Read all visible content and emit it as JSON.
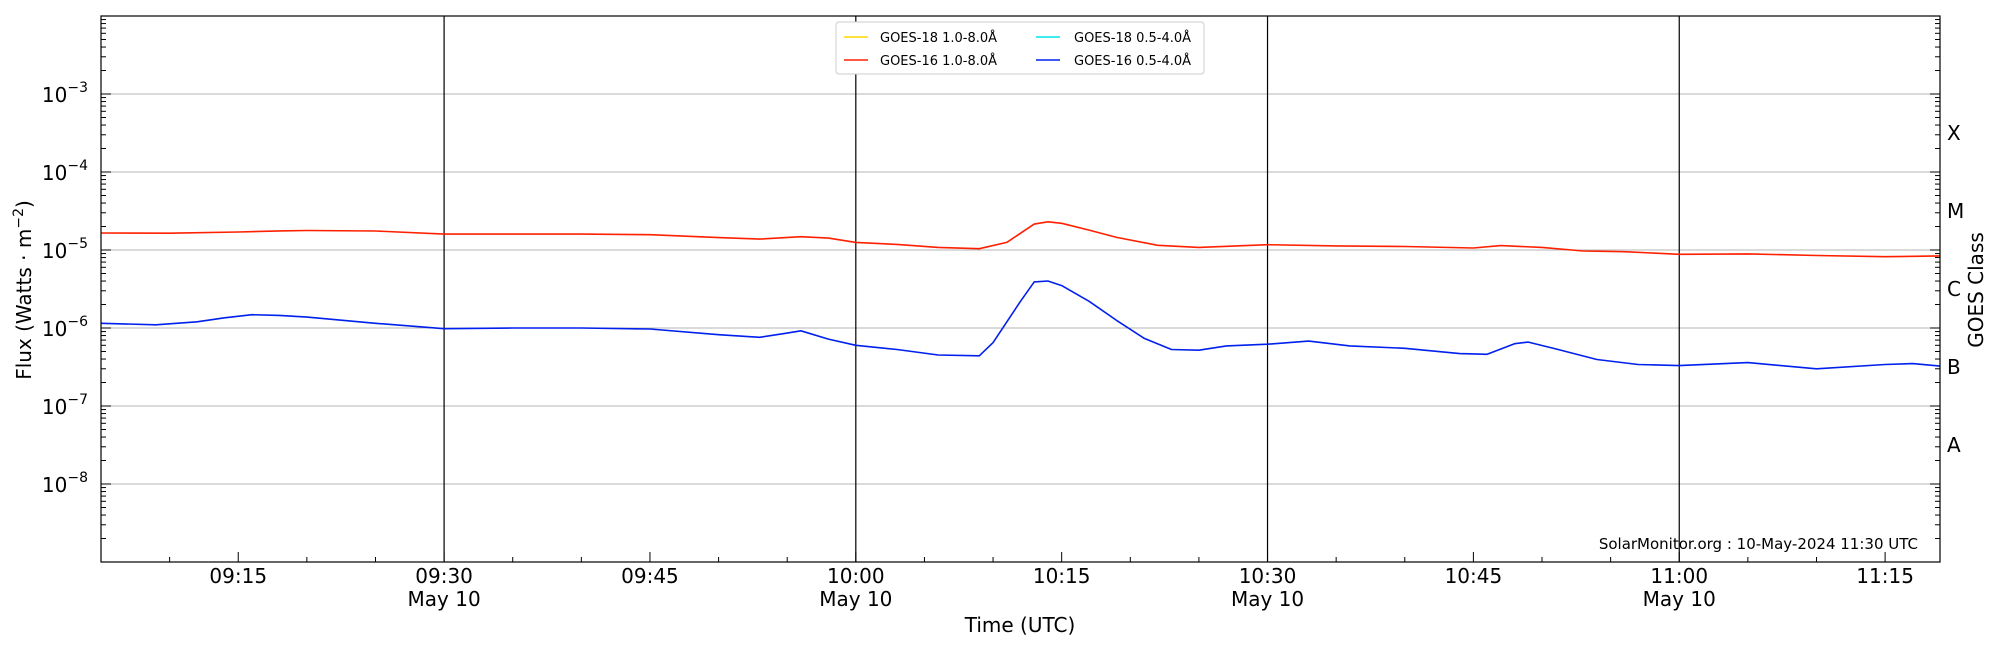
{
  "chart_data": {
    "type": "line",
    "xlabel": "Time (UTC)",
    "ylabel": "Flux (Watts · m",
    "ylabel_sup": "−2",
    "ylabel_close": ")",
    "ylabel_right": "GOES Class",
    "credit": "SolarMonitor.org : 10-May-2024 11:30 UTC",
    "x_range": [
      "09:05",
      "11:19"
    ],
    "y_scale": "log",
    "y_range": [
      1e-09,
      0.01
    ],
    "y_ticks": [
      {
        "value": 0.001,
        "base": "10",
        "exp": "−3"
      },
      {
        "value": 0.0001,
        "base": "10",
        "exp": "−4"
      },
      {
        "value": 1e-05,
        "base": "10",
        "exp": "−5"
      },
      {
        "value": 1e-06,
        "base": "10",
        "exp": "−6"
      },
      {
        "value": 1e-07,
        "base": "10",
        "exp": "−7"
      },
      {
        "value": 1e-08,
        "base": "10",
        "exp": "−8"
      }
    ],
    "x_ticks": [
      {
        "time": "09:15",
        "label": "09:15",
        "date": ""
      },
      {
        "time": "09:30",
        "label": "09:30",
        "date": "May 10"
      },
      {
        "time": "09:45",
        "label": "09:45",
        "date": ""
      },
      {
        "time": "10:00",
        "label": "10:00",
        "date": "May 10"
      },
      {
        "time": "10:15",
        "label": "10:15",
        "date": ""
      },
      {
        "time": "10:30",
        "label": "10:30",
        "date": "May 10"
      },
      {
        "time": "10:45",
        "label": "10:45",
        "date": ""
      },
      {
        "time": "11:00",
        "label": "11:00",
        "date": "May 10"
      },
      {
        "time": "11:15",
        "label": "11:15",
        "date": ""
      }
    ],
    "goes_classes": [
      {
        "label": "X",
        "value": 0.0003162
      },
      {
        "label": "M",
        "value": 3.162e-05
      },
      {
        "label": "C",
        "value": 3.162e-06
      },
      {
        "label": "B",
        "value": 3.162e-07
      },
      {
        "label": "A",
        "value": 3.162e-08
      }
    ],
    "grid": true,
    "legend_position": "top-center",
    "series": [
      {
        "name": "GOES-18 1.0-8.0Å",
        "color": "#ffd700",
        "points": []
      },
      {
        "name": "GOES-18 0.5-4.0Å",
        "color": "#00e5ee",
        "points": []
      },
      {
        "name": "GOES-16 1.0-8.0Å",
        "color": "#ff2000",
        "points": [
          [
            "09:05",
            1.65e-05
          ],
          [
            "09:10",
            1.64e-05
          ],
          [
            "09:15",
            1.7e-05
          ],
          [
            "09:18",
            1.76e-05
          ],
          [
            "09:20",
            1.78e-05
          ],
          [
            "09:25",
            1.75e-05
          ],
          [
            "09:30",
            1.6e-05
          ],
          [
            "09:35",
            1.6e-05
          ],
          [
            "09:40",
            1.6e-05
          ],
          [
            "09:45",
            1.57e-05
          ],
          [
            "09:50",
            1.44e-05
          ],
          [
            "09:53",
            1.38e-05
          ],
          [
            "09:56",
            1.48e-05
          ],
          [
            "09:58",
            1.42e-05
          ],
          [
            "10:00",
            1.25e-05
          ],
          [
            "10:03",
            1.18e-05
          ],
          [
            "10:06",
            1.08e-05
          ],
          [
            "10:09",
            1.04e-05
          ],
          [
            "10:11",
            1.25e-05
          ],
          [
            "10:13",
            2.15e-05
          ],
          [
            "10:14",
            2.3e-05
          ],
          [
            "10:15",
            2.2e-05
          ],
          [
            "10:17",
            1.8e-05
          ],
          [
            "10:19",
            1.45e-05
          ],
          [
            "10:22",
            1.15e-05
          ],
          [
            "10:25",
            1.08e-05
          ],
          [
            "10:30",
            1.17e-05
          ],
          [
            "10:35",
            1.13e-05
          ],
          [
            "10:40",
            1.11e-05
          ],
          [
            "10:45",
            1.06e-05
          ],
          [
            "10:47",
            1.14e-05
          ],
          [
            "10:50",
            1.08e-05
          ],
          [
            "10:53",
            9.7e-06
          ],
          [
            "10:56",
            9.5e-06
          ],
          [
            "11:00",
            8.8e-06
          ],
          [
            "11:05",
            8.9e-06
          ],
          [
            "11:10",
            8.5e-06
          ],
          [
            "11:15",
            8.2e-06
          ],
          [
            "11:19",
            8.4e-06
          ]
        ]
      },
      {
        "name": "GOES-16 0.5-4.0Å",
        "color": "#0020ee",
        "points": [
          [
            "09:05",
            1.15e-06
          ],
          [
            "09:09",
            1.1e-06
          ],
          [
            "09:12",
            1.2e-06
          ],
          [
            "09:14",
            1.35e-06
          ],
          [
            "09:16",
            1.48e-06
          ],
          [
            "09:18",
            1.45e-06
          ],
          [
            "09:20",
            1.38e-06
          ],
          [
            "09:25",
            1.15e-06
          ],
          [
            "09:30",
            9.8e-07
          ],
          [
            "09:35",
            1e-06
          ],
          [
            "09:40",
            1e-06
          ],
          [
            "09:45",
            9.7e-07
          ],
          [
            "09:50",
            8.2e-07
          ],
          [
            "09:53",
            7.6e-07
          ],
          [
            "09:55",
            8.6e-07
          ],
          [
            "09:56",
            9.2e-07
          ],
          [
            "09:58",
            7.2e-07
          ],
          [
            "10:00",
            6e-07
          ],
          [
            "10:03",
            5.3e-07
          ],
          [
            "10:06",
            4.5e-07
          ],
          [
            "10:09",
            4.4e-07
          ],
          [
            "10:10",
            6.5e-07
          ],
          [
            "10:12",
            2.2e-06
          ],
          [
            "10:13",
            3.9e-06
          ],
          [
            "10:14",
            4e-06
          ],
          [
            "10:15",
            3.5e-06
          ],
          [
            "10:17",
            2.2e-06
          ],
          [
            "10:19",
            1.25e-06
          ],
          [
            "10:21",
            7.4e-07
          ],
          [
            "10:23",
            5.3e-07
          ],
          [
            "10:25",
            5.2e-07
          ],
          [
            "10:27",
            5.9e-07
          ],
          [
            "10:30",
            6.2e-07
          ],
          [
            "10:33",
            6.8e-07
          ],
          [
            "10:36",
            5.9e-07
          ],
          [
            "10:40",
            5.5e-07
          ],
          [
            "10:44",
            4.7e-07
          ],
          [
            "10:46",
            4.6e-07
          ],
          [
            "10:48",
            6.3e-07
          ],
          [
            "10:49",
            6.6e-07
          ],
          [
            "10:51",
            5.4e-07
          ],
          [
            "10:54",
            3.95e-07
          ],
          [
            "10:57",
            3.4e-07
          ],
          [
            "11:00",
            3.3e-07
          ],
          [
            "11:05",
            3.6e-07
          ],
          [
            "11:10",
            3e-07
          ],
          [
            "11:15",
            3.4e-07
          ],
          [
            "11:17",
            3.5e-07
          ],
          [
            "11:19",
            3.25e-07
          ]
        ]
      }
    ]
  }
}
